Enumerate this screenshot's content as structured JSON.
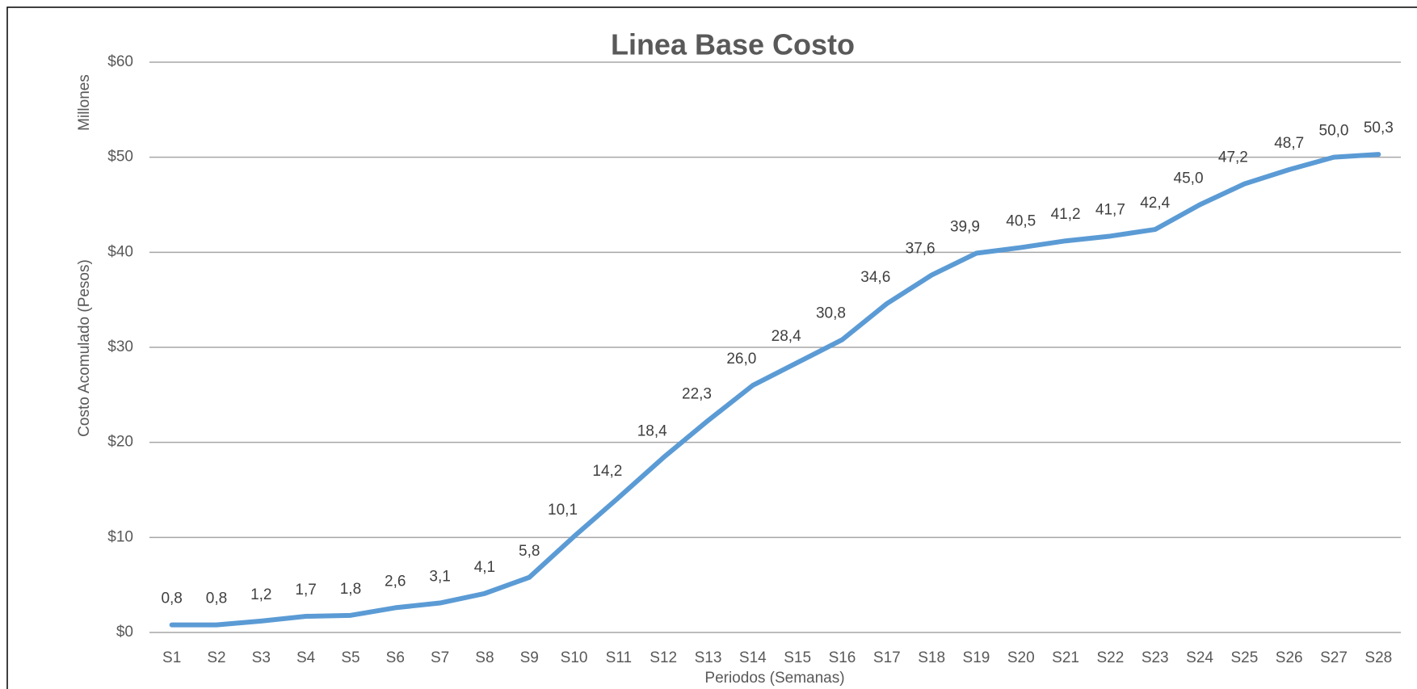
{
  "chart_data": {
    "type": "line",
    "title": "Linea Base Costo",
    "y_axis_title": "Costo Acomulado (Pesos)",
    "y_display_unit": "Millones",
    "x_axis_title": "Periodos (Semanas)",
    "categories": [
      "S1",
      "S2",
      "S3",
      "S4",
      "S5",
      "S6",
      "S7",
      "S8",
      "S9",
      "S10",
      "S11",
      "S12",
      "S13",
      "S14",
      "S15",
      "S16",
      "S17",
      "S18",
      "S19",
      "S20",
      "S21",
      "S22",
      "S23",
      "S24",
      "S25",
      "S26",
      "S27",
      "S28"
    ],
    "values": [
      0.8,
      0.8,
      1.2,
      1.7,
      1.8,
      2.6,
      3.1,
      4.1,
      5.8,
      10.1,
      14.2,
      18.4,
      22.3,
      26.0,
      28.4,
      30.8,
      34.6,
      37.6,
      39.9,
      40.5,
      41.2,
      41.7,
      42.4,
      45.0,
      47.2,
      48.7,
      50.0,
      50.3
    ],
    "value_labels": [
      "0,8",
      "0,8",
      "1,2",
      "1,7",
      "1,8",
      "2,6",
      "3,1",
      "4,1",
      "5,8",
      "10,1",
      "14,2",
      "18,4",
      "22,3",
      "26,0",
      "28,4",
      "30,8",
      "34,6",
      "37,6",
      "39,9",
      "40,5",
      "41,2",
      "41,7",
      "42,4",
      "45,0",
      "47,2",
      "48,7",
      "50,0",
      "50,3"
    ],
    "color": "#5b9bd5",
    "ylim": [
      0,
      60
    ],
    "yticks": [
      {
        "value": 0,
        "label": "$0"
      },
      {
        "value": 10,
        "label": "$10"
      },
      {
        "value": 20,
        "label": "$20"
      },
      {
        "value": 30,
        "label": "$30"
      },
      {
        "value": 40,
        "label": "$40"
      },
      {
        "value": 50,
        "label": "$50"
      },
      {
        "value": 60,
        "label": "$60"
      }
    ],
    "grid": true
  }
}
